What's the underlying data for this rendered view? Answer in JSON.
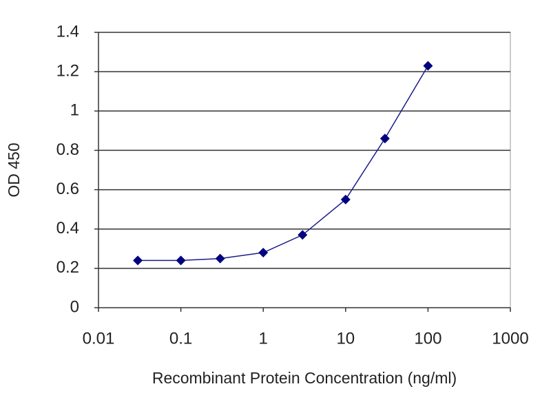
{
  "chart_data": {
    "type": "line",
    "xlabel": "Recombinant Protein Concentration (ng/ml)",
    "ylabel": "OD 450",
    "x": [
      0.03,
      0.1,
      0.3,
      1,
      3,
      10,
      30,
      100
    ],
    "values": [
      0.24,
      0.24,
      0.25,
      0.28,
      0.37,
      0.55,
      0.86,
      1.23
    ],
    "color": "#1a1a8c",
    "xscale": "log",
    "xlim": [
      0.01,
      1000
    ],
    "xticks": [
      0.01,
      0.1,
      1,
      10,
      100,
      1000
    ],
    "ylim": [
      0,
      1.4
    ],
    "yticks": [
      0,
      0.2,
      0.4,
      0.6,
      0.8,
      1,
      1.2,
      1.4
    ],
    "grid": true
  }
}
